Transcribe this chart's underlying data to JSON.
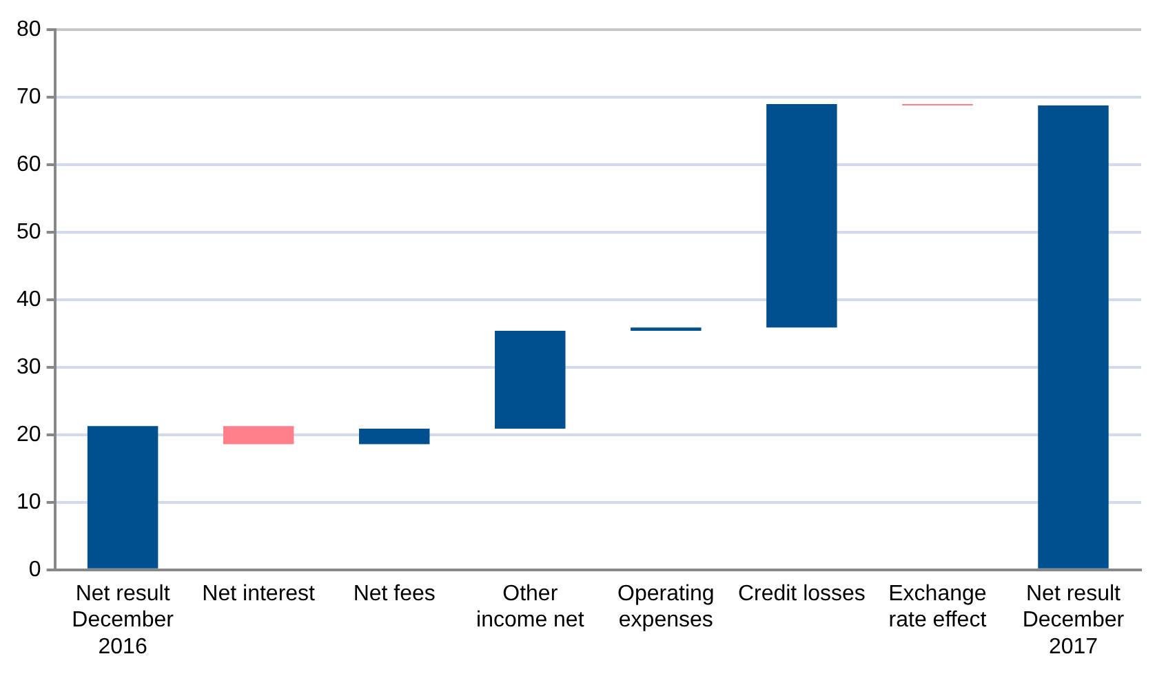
{
  "chart_data": {
    "type": "bar",
    "categories": [
      "Net result December 2016",
      "Net interest",
      "Net fees",
      "Other income net",
      "Operating expenses",
      "Credit losses",
      "Exchange rate effect",
      "Net result December 2017"
    ],
    "base": [
      0,
      21.3,
      18.6,
      20.9,
      35.4,
      35.9,
      69.0,
      0
    ],
    "values": [
      21.3,
      -2.7,
      2.3,
      14.5,
      0.5,
      33.1,
      -0.2,
      68.8
    ],
    "colors": [
      "#00508f",
      "#ff7f8a",
      "#00508f",
      "#00508f",
      "#00508f",
      "#00508f",
      "#ff7f8a",
      "#00508f"
    ],
    "ylim": [
      0,
      80
    ],
    "yticks": [
      0,
      10,
      20,
      30,
      40,
      50,
      60,
      70,
      80
    ],
    "grid": "y",
    "legend": false
  }
}
